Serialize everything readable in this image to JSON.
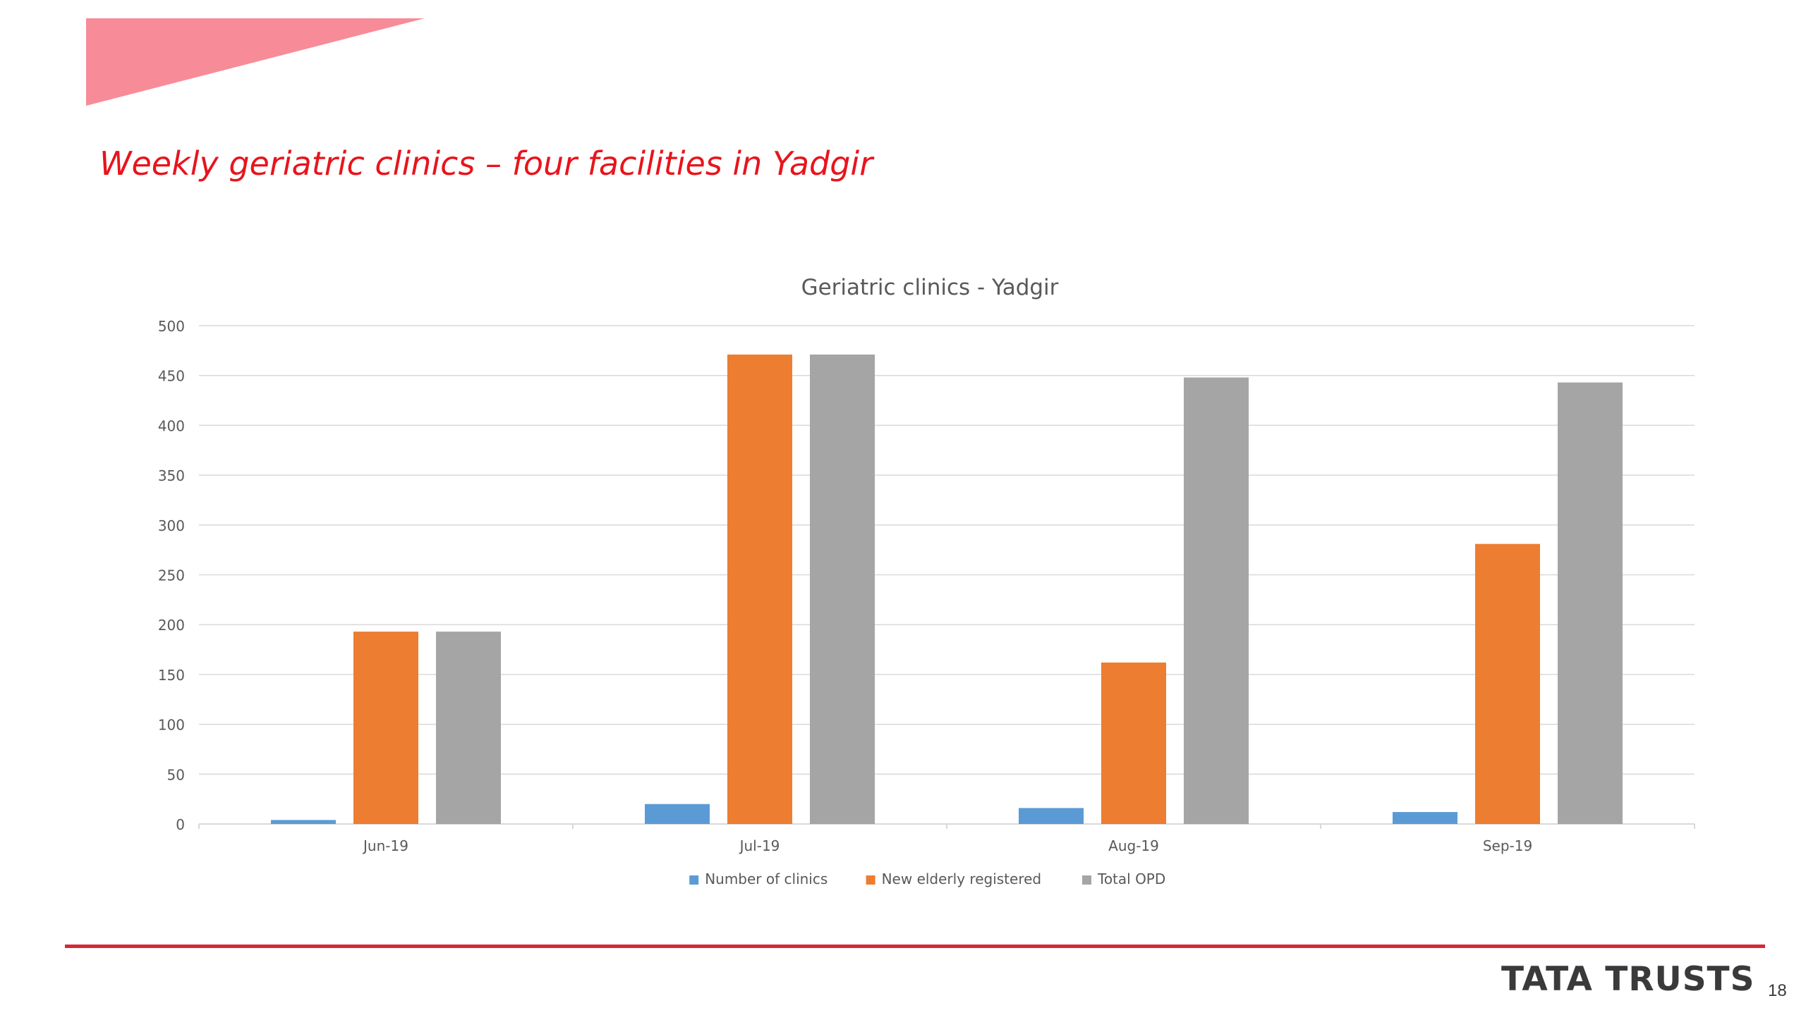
{
  "slide": {
    "title": "Weekly geriatric clinics – four facilities in Yadgir",
    "brand": "TATA TRUSTS",
    "page_number": "18",
    "accent_color": "#f88b98",
    "rule_color": "#d42a35",
    "title_color": "#e8141c"
  },
  "chart_data": {
    "type": "bar",
    "title": "Geriatric clinics - Yadgir",
    "xlabel": "",
    "ylabel": "",
    "categories": [
      "Jun-19",
      "Jul-19",
      "Aug-19",
      "Sep-19"
    ],
    "series": [
      {
        "name": "Number of clinics",
        "values": [
          4,
          20,
          16,
          12
        ],
        "color": "#5b9bd5"
      },
      {
        "name": "New elderly registered",
        "values": [
          193,
          471,
          162,
          281
        ],
        "color": "#ed7d31"
      },
      {
        "name": "Total OPD",
        "values": [
          193,
          471,
          448,
          443
        ],
        "color": "#a5a5a5"
      }
    ],
    "ylim": [
      0,
      500
    ],
    "yticks": [
      "0",
      "50",
      "100",
      "150",
      "200",
      "250",
      "300",
      "350",
      "400",
      "450",
      "500"
    ],
    "grid": true,
    "legend_position": "bottom"
  }
}
